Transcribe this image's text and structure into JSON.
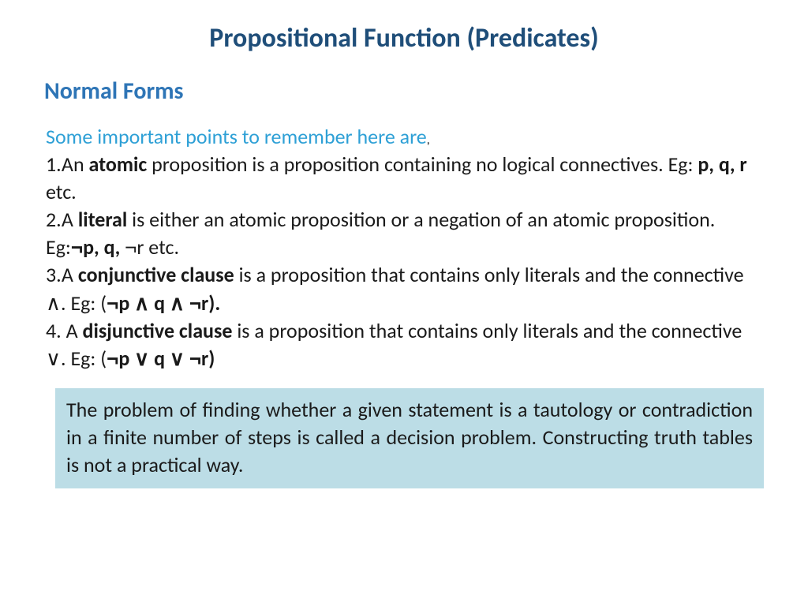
{
  "title": "Propositional Function (Predicates)",
  "subtitle": "Normal Forms",
  "intro": "Some important points to remember here are",
  "points": {
    "p1_a": "1.An ",
    "p1_b": "atomic",
    "p1_c": " proposition is a proposition containing no logical connectives. Eg: ",
    "p1_d": "p, q, r",
    "p1_e": " etc.",
    "p2_a": "2.A ",
    "p2_b": "literal",
    "p2_c": " is either an atomic proposition or a negation of an atomic proposition. Eg:",
    "p2_neg1": "¬",
    "p2_d": "p, q, ",
    "p2_neg2": "¬",
    "p2_e": "r etc.",
    "p3_a": "3.A ",
    "p3_b": "conjunctive clause",
    "p3_c": " is a proposition that contains only literals and the connective ",
    "p3_and": "∧",
    "p3_d": ". Eg: (",
    "p3_neg1": "¬",
    "p3_e": "p ",
    "p3_and2": "∧",
    "p3_f": " q ",
    "p3_and3": "∧",
    "p3_g": " ",
    "p3_neg2": "¬",
    "p3_h": "r).",
    "p4_a": "4. A ",
    "p4_b": "disjunctive clause",
    "p4_c": " is a proposition that contains only literals and the connective ",
    "p4_or": "∨",
    "p4_d": ". Eg: (",
    "p4_neg1": "¬",
    "p4_e": "p ",
    "p4_or2": "∨",
    "p4_f": " q ",
    "p4_or3": "∨",
    "p4_g": " ",
    "p4_neg2": "¬",
    "p4_h": "r)"
  },
  "callout": "The problem of finding whether a given statement is a tautology or contradiction in a finite number of steps is called a decision problem. Constructing truth tables is not a practical way.",
  "colors": {
    "title": "#1f4e79",
    "subtitle": "#2e75b6",
    "intro": "#2ea0d6",
    "body": "#1a1a1a",
    "callout_bg": "#bcdde6",
    "background": "#ffffff"
  }
}
